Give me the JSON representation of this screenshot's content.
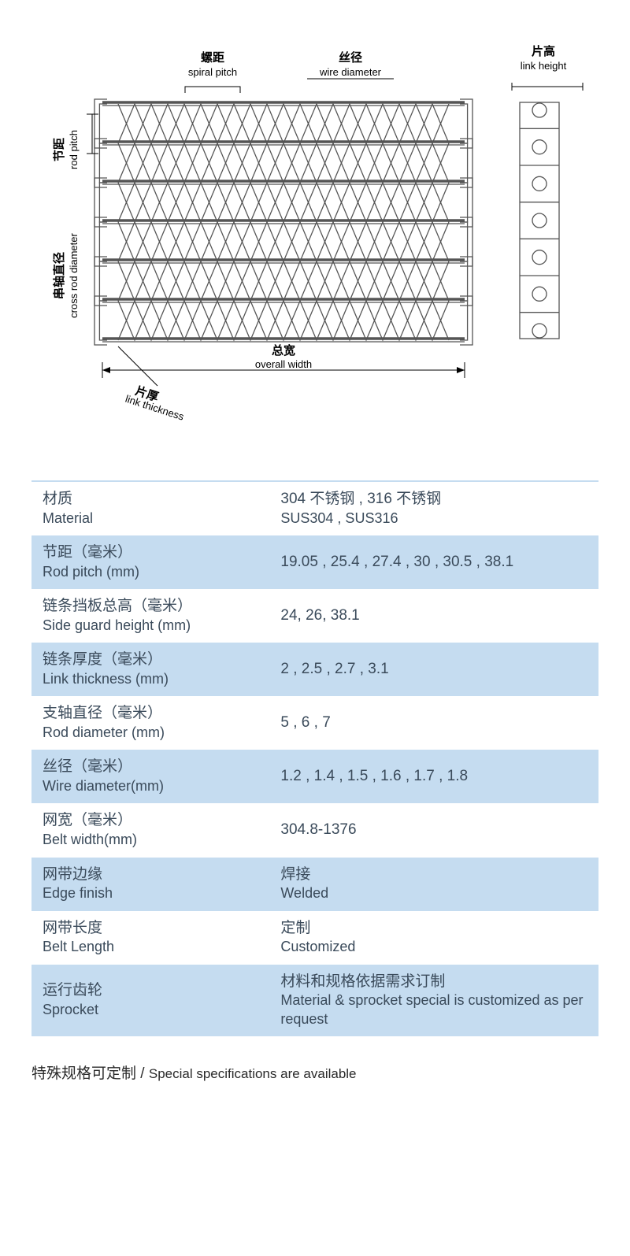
{
  "diagram": {
    "labels": {
      "spiral_pitch_cn": "螺距",
      "spiral_pitch_en": "spiral pitch",
      "wire_diameter_cn": "丝径",
      "wire_diameter_en": "wire diameter",
      "link_height_cn": "片高",
      "link_height_en": "link height",
      "rod_pitch_cn": "节距",
      "rod_pitch_en": "rod pitch",
      "cross_rod_cn": "串轴直径",
      "cross_rod_en": "cross rod diameter",
      "overall_width_cn": "总宽",
      "overall_width_en": "overall width",
      "link_thickness_cn": "片厚",
      "link_thickness_en": "link thickness"
    },
    "rows": 6,
    "spirals_per_row": 10,
    "stroke_color": "#555555",
    "line_color": "#000000"
  },
  "table": {
    "header_border_color": "#c5dcf0",
    "alt_row_bg": "#c5dcf0",
    "text_color": "#3a4a5a",
    "rows": [
      {
        "label_cn": "材质",
        "label_en": "Material",
        "value_cn": "304 不锈钢 , 316 不锈钢",
        "value_en": "SUS304 , SUS316",
        "alt": false
      },
      {
        "label_cn": "节距（毫米）",
        "label_en": "Rod pitch (mm)",
        "value_cn": "19.05 , 25.4 , 27.4 , 30 , 30.5 , 38.1",
        "value_en": "",
        "alt": true
      },
      {
        "label_cn": "链条挡板总高（毫米）",
        "label_en": "Side guard height (mm)",
        "value_cn": "24, 26, 38.1",
        "value_en": "",
        "alt": false
      },
      {
        "label_cn": "链条厚度（毫米）",
        "label_en": "Link thickness (mm)",
        "value_cn": "2 , 2.5 , 2.7 , 3.1",
        "value_en": "",
        "alt": true
      },
      {
        "label_cn": "支轴直径（毫米）",
        "label_en": "Rod diameter (mm)",
        "value_cn": "5 , 6 , 7",
        "value_en": "",
        "alt": false
      },
      {
        "label_cn": "丝径（毫米）",
        "label_en": "Wire diameter(mm)",
        "value_cn": "1.2 , 1.4 , 1.5 , 1.6 , 1.7 , 1.8",
        "value_en": "",
        "alt": true
      },
      {
        "label_cn": "网宽（毫米）",
        "label_en": "Belt width(mm)",
        "value_cn": "304.8-1376",
        "value_en": "",
        "alt": false
      },
      {
        "label_cn": "网带边缘",
        "label_en": "Edge finish",
        "value_cn": "焊接",
        "value_en": "Welded",
        "alt": true
      },
      {
        "label_cn": "网带长度",
        "label_en": "Belt Length",
        "value_cn": "定制",
        "value_en": "Customized",
        "alt": false
      },
      {
        "label_cn": "运行齿轮",
        "label_en": "Sprocket",
        "value_cn": "材料和规格依据需求订制",
        "value_en": "Material & sprocket special is customized as per request",
        "alt": true
      }
    ]
  },
  "footnote": {
    "cn": "特殊规格可定制",
    "sep": " / ",
    "en": "Special specifications are available"
  }
}
